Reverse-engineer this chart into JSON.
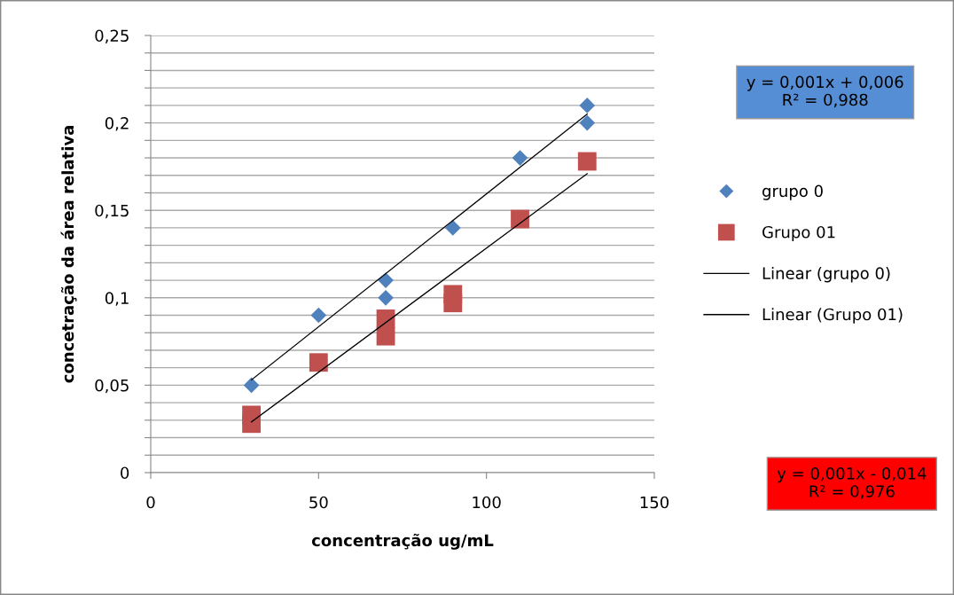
{
  "chart_data": {
    "type": "scatter",
    "xlabel": "concentração ug/mL",
    "ylabel": "concetração da área relativa",
    "xlim": [
      0,
      150
    ],
    "xticks": [
      0,
      50,
      100,
      150
    ],
    "ylim": [
      0,
      0.25
    ],
    "yticks": [
      {
        "value": 0,
        "label": "0"
      },
      {
        "value": 0.01,
        "label": null
      },
      {
        "value": 0.02,
        "label": null
      },
      {
        "value": 0.03,
        "label": null
      },
      {
        "value": 0.04,
        "label": null
      },
      {
        "value": 0.05,
        "label": "0,05"
      },
      {
        "value": 0.06,
        "label": null
      },
      {
        "value": 0.07,
        "label": null
      },
      {
        "value": 0.08,
        "label": null
      },
      {
        "value": 0.09,
        "label": null
      },
      {
        "value": 0.1,
        "label": "0,1"
      },
      {
        "value": 0.11,
        "label": null
      },
      {
        "value": 0.12,
        "label": null
      },
      {
        "value": 0.13,
        "label": null
      },
      {
        "value": 0.14,
        "label": null
      },
      {
        "value": 0.15,
        "label": "0,15"
      },
      {
        "value": 0.16,
        "label": null
      },
      {
        "value": 0.17,
        "label": null
      },
      {
        "value": 0.18,
        "label": null
      },
      {
        "value": 0.19,
        "label": null
      },
      {
        "value": 0.2,
        "label": "0,2"
      },
      {
        "value": 0.21,
        "label": null
      },
      {
        "value": 0.22,
        "label": null
      },
      {
        "value": 0.23,
        "label": null
      },
      {
        "value": 0.24,
        "label": null
      },
      {
        "value": 0.25,
        "label": "0,25"
      }
    ],
    "grid": "y",
    "legend": "right",
    "series": [
      {
        "name": "grupo 0",
        "marker": "diamond",
        "color": "#4f81bd",
        "x": [
          30,
          50,
          70,
          70,
          90,
          110,
          130,
          130
        ],
        "values": [
          0.05,
          0.09,
          0.11,
          0.1,
          0.14,
          0.18,
          0.21,
          0.2
        ]
      },
      {
        "name": "Grupo 01",
        "marker": "square",
        "color": "#c0504d",
        "x": [
          30,
          30,
          50,
          70,
          70,
          90,
          90,
          110,
          130
        ],
        "values": [
          0.028,
          0.033,
          0.063,
          0.078,
          0.088,
          0.097,
          0.102,
          0.145,
          0.178
        ]
      },
      {
        "name": "Linear (grupo 0)",
        "type": "line",
        "marker": "none",
        "color": "#000000",
        "x": [
          30,
          130
        ],
        "values": [
          0.053,
          0.205
        ]
      },
      {
        "name": "Linear (Grupo 01)",
        "type": "line",
        "marker": "none",
        "color": "#000000",
        "x": [
          30,
          130
        ],
        "values": [
          0.029,
          0.171
        ]
      }
    ],
    "annotations": [
      "y = 0,001x + 0,006\nR² = 0,988",
      "y = 0,001x - 0,014\nR² = 0,976"
    ]
  }
}
